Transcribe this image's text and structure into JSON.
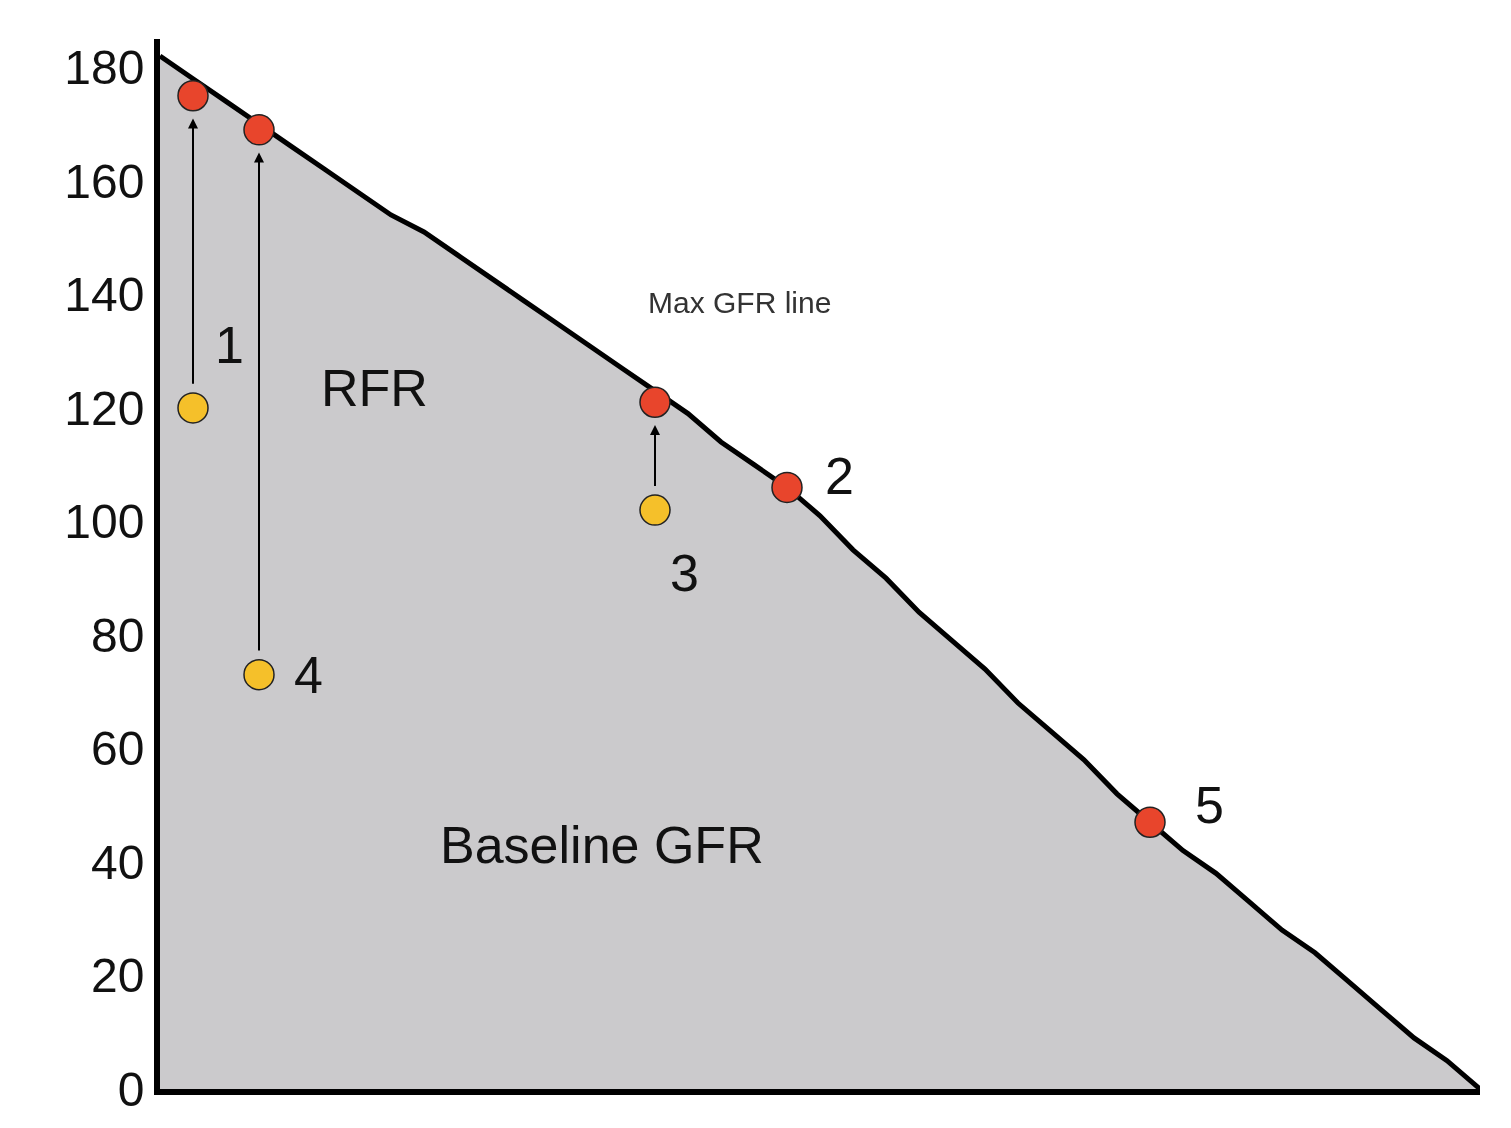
{
  "chart_data": {
    "type": "scatter",
    "ylim": [
      0,
      185
    ],
    "yticks": [
      0,
      20,
      40,
      60,
      80,
      100,
      120,
      140,
      160,
      180
    ],
    "tick_labels": "y",
    "marker": "circle",
    "categories": [
      null,
      null,
      null,
      null,
      null,
      null,
      null,
      null,
      null,
      null,
      null,
      null,
      null,
      null,
      null,
      null,
      null,
      null,
      null,
      null,
      null,
      null,
      null,
      null,
      null,
      null,
      null,
      null,
      null,
      null,
      null,
      null,
      null,
      null,
      null,
      null,
      null,
      null,
      null,
      null,
      null
    ],
    "series": [
      {
        "type": "area",
        "marker": "none",
        "color": "#000000",
        "values": [
          182,
          178,
          174,
          170,
          166,
          162,
          158,
          154,
          151,
          147,
          143,
          139,
          135,
          131,
          127,
          123,
          119,
          114,
          110,
          106,
          101,
          95,
          90,
          84,
          79,
          74,
          68,
          63,
          58,
          52,
          47,
          42,
          38,
          33,
          28,
          24,
          19,
          14,
          9,
          5,
          0
        ]
      },
      {
        "color": "#f5c02a",
        "values": [
          null,
          120,
          null,
          73,
          null,
          null,
          null,
          null,
          null,
          null,
          null,
          null,
          null,
          null,
          null,
          102,
          null,
          null,
          null,
          null,
          null,
          null,
          null,
          null,
          null,
          null,
          null,
          null,
          null,
          null,
          null,
          null,
          null,
          null,
          null,
          null,
          null,
          null,
          null,
          null,
          null
        ]
      },
      {
        "color": "#e8452c",
        "values": [
          null,
          175,
          null,
          169,
          null,
          null,
          null,
          null,
          null,
          null,
          null,
          null,
          null,
          null,
          null,
          121,
          null,
          null,
          null,
          106,
          null,
          null,
          null,
          null,
          null,
          null,
          null,
          null,
          null,
          null,
          47,
          null,
          null,
          null,
          null,
          null,
          null,
          null,
          null,
          null,
          null
        ]
      }
    ],
    "annotations": [
      "1",
      "2",
      "3",
      "4",
      "5",
      "RFR",
      "Baseline GFR",
      "Max GFR line"
    ]
  }
}
